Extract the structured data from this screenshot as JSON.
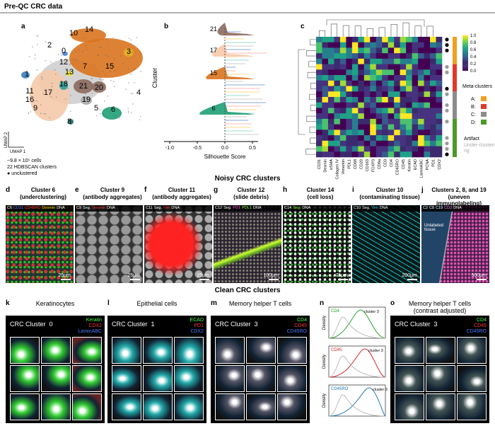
{
  "header": {
    "title": "Pre-QC CRC data"
  },
  "panel_a": {
    "letter": "a",
    "cluster_labels": [
      "10",
      "14",
      "2",
      "0",
      "3",
      "12",
      "7",
      "15",
      "1",
      "13",
      "18",
      "21",
      "20",
      "4",
      "11",
      "17",
      "16",
      "9",
      "19",
      "5",
      "6",
      "8"
    ],
    "axis_x": "UMAP 1",
    "axis_y": "UMAP 2",
    "notes": [
      "~9.8 × 10⁵ cells",
      "22 HDBSCAN clusters",
      "● unclustered"
    ]
  },
  "panel_b": {
    "letter": "b",
    "y_label": "Cluster",
    "x_label": "Silhouette Score",
    "xticks": [
      "-1.0",
      "-0.5",
      "0.0",
      "0.5"
    ],
    "cluster_labels": [
      "21",
      "17",
      "15",
      "6"
    ]
  },
  "panel_c": {
    "letter": "c",
    "markers": [
      "CD31",
      "Desmin",
      "αSMA",
      "Collagen IV",
      "Vimentin",
      "PDL1",
      "CD68",
      "CD20",
      "CD163",
      "FOXP3",
      "CD8a",
      "CD3",
      "CD4",
      "CD45RO",
      "CD45",
      "Keratin",
      "ECAD",
      "LaminABC",
      "PCNA",
      "PD1",
      "CDX2"
    ],
    "colorbar_ticks": [
      "1.0",
      "0.8",
      "0.6",
      "0.4",
      "0.2",
      "0.0"
    ],
    "legend_title": "Meta-clusters",
    "meta": [
      {
        "name": "A:",
        "color": "#f0a020"
      },
      {
        "name": "B:",
        "color": "#e0392b"
      },
      {
        "name": "C:",
        "color": "#8c8c8c"
      },
      {
        "name": "D:",
        "color": "#4c9a2a"
      }
    ],
    "artifact": "Artifact",
    "underclustering": "Under-clustering"
  },
  "noisy": {
    "title": "Noisy CRC clusters",
    "panels": [
      {
        "letter": "d",
        "title": "Cluster 6",
        "subtitle": "(underclustering)",
        "channels": [
          {
            "name": "C6",
            "color": "#ffffff"
          },
          {
            "name": "CD31",
            "color": "#4a6cff"
          },
          {
            "name": "CD45RO",
            "color": "#ff3a3a"
          },
          {
            "name": "Desmin",
            "color": "#ffd700"
          },
          {
            "name": "DNA",
            "color": "#ffffff"
          }
        ],
        "scale": "25μm"
      },
      {
        "letter": "e",
        "title": "Cluster 9",
        "subtitle": "(antibody aggregates)",
        "channels": [
          {
            "name": "C9",
            "color": "#ffffff"
          },
          {
            "name": "Seg.",
            "color": "#ffffff"
          },
          {
            "name": "Desmin",
            "color": "#ff3a3a"
          },
          {
            "name": "DNA",
            "color": "#ffffff"
          }
        ],
        "scale": "25μm"
      },
      {
        "letter": "f",
        "title": "Cluster 11",
        "subtitle": "(antibody aggregates)",
        "channels": [
          {
            "name": "C11",
            "color": "#ffffff"
          },
          {
            "name": "Seg.",
            "color": "#ffffff"
          },
          {
            "name": "Vim",
            "color": "#ff3a3a"
          },
          {
            "name": "DNA",
            "color": "#ffffff"
          }
        ],
        "scale": "25μm"
      },
      {
        "letter": "g",
        "title": "Cluster 12",
        "subtitle": "(slide debris)",
        "channels": [
          {
            "name": "C12",
            "color": "#ffffff"
          },
          {
            "name": "Seg.",
            "color": "#ffffff"
          },
          {
            "name": "PD1",
            "color": "#ff4fd8"
          },
          {
            "name": "PDL1",
            "color": "#7cff3a"
          },
          {
            "name": "DNA",
            "color": "#ffffff"
          }
        ],
        "scale": "100μm"
      },
      {
        "letter": "h",
        "title": "Cluster 14",
        "subtitle": "(cell loss)",
        "channels": [
          {
            "name": "C14",
            "color": "#ffffff"
          },
          {
            "name": "Seg.",
            "color": "#7cff3a"
          },
          {
            "name": "DNA",
            "color": "#ffffff"
          }
        ],
        "scale": "75μm"
      },
      {
        "letter": "i",
        "title": "Cluster 10",
        "subtitle": "(contaminating tissue)",
        "channels": [
          {
            "name": "C10",
            "color": "#ffffff"
          },
          {
            "name": "Seg.",
            "color": "#ffffff"
          },
          {
            "name": "Vim",
            "color": "#3ad0ff"
          },
          {
            "name": "DNA",
            "color": "#ffffff"
          }
        ],
        "scale": "200μm"
      },
      {
        "letter": "j",
        "title": "Clusters 2, 8, and 19",
        "subtitle": "(uneven immunolabeling)",
        "channels": [
          {
            "name": "C2",
            "color": "#ffffff"
          },
          {
            "name": "C8",
            "color": "#ffffff"
          },
          {
            "name": "C19",
            "color": "#ffffff"
          },
          {
            "name": "CD3",
            "color": "#ff7ad8"
          },
          {
            "name": "DNA",
            "color": "#ffffff"
          }
        ],
        "scale": "500μm",
        "annotation": "Unlabeled tissue"
      }
    ]
  },
  "clean": {
    "title": "Clean CRC clusters",
    "panels": [
      {
        "letter": "k",
        "title": "Keratinocytes",
        "cluster": "CRC Cluster  0",
        "channels": [
          {
            "name": "Keratin",
            "color": "#4cff4c"
          },
          {
            "name": "CDX2",
            "color": "#ff3a3a"
          },
          {
            "name": "LaminABC",
            "color": "#4a7cff"
          }
        ]
      },
      {
        "letter": "l",
        "title": "Epithelial cells",
        "cluster": "CRC Cluster  1",
        "channels": [
          {
            "name": "ECAD",
            "color": "#4cff4c"
          },
          {
            "name": "PD1",
            "color": "#ff3a3a"
          },
          {
            "name": "CDX2",
            "color": "#4a7cff"
          }
        ]
      },
      {
        "letter": "m",
        "title": "Memory helper T cells",
        "cluster": "CRC Cluster  3",
        "channels": [
          {
            "name": "CD4",
            "color": "#4cff4c"
          },
          {
            "name": "CD45",
            "color": "#ff3a3a"
          },
          {
            "name": "CD45RO",
            "color": "#4a7cff"
          }
        ]
      },
      {
        "letter": "o",
        "title": "Memory helper T cells",
        "cluster": "CRC Cluster  3",
        "subtitle": "(contrast adjusted)",
        "channels": [
          {
            "name": "CD4",
            "color": "#4cff4c"
          },
          {
            "name": "CD45",
            "color": "#ff3a3a"
          },
          {
            "name": "CD45RO",
            "color": "#4a7cff"
          }
        ]
      }
    ],
    "hist": {
      "letter": "n",
      "cluster_label": "cluster 3",
      "y_label": "Density",
      "plots": [
        {
          "name": "CD4",
          "color": "#2ca02c"
        },
        {
          "name": "CD45",
          "color": "#d62728"
        },
        {
          "name": "CD45RO",
          "color": "#1f77b4"
        }
      ]
    }
  }
}
